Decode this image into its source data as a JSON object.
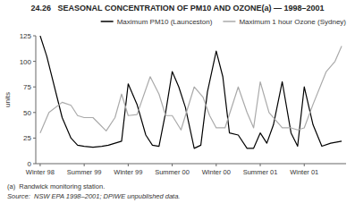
{
  "chart_data": {
    "type": "line",
    "title": "24.26   SEASONAL CONCENTRATION OF PM10 AND OZONE(a) — 1998–2001",
    "ylabel": "units",
    "annotations": [
      "(a)  Randwick monitoring station.",
      "Source:  NSW EPA 1998–2001; DPIWE unpublished data."
    ],
    "xlim": [
      -0.1,
      6.95
    ],
    "xticks": [
      {
        "value": 0,
        "label": "Winter 98"
      },
      {
        "value": 1,
        "label": "Summer 99"
      },
      {
        "value": 2,
        "label": "Winter 99"
      },
      {
        "value": 3,
        "label": "Summer 00"
      },
      {
        "value": 4,
        "label": "Winter 00"
      },
      {
        "value": 5,
        "label": "Summer 01"
      },
      {
        "value": 6,
        "label": "Winter 01"
      }
    ],
    "ylim": [
      0,
      125
    ],
    "yticks": [
      0,
      25,
      50,
      75,
      100,
      125
    ],
    "grid": false,
    "legend": "upper right",
    "series": [
      {
        "name": "Maximum PM10 (Launceston)",
        "color": "#000000",
        "x": [
          0,
          0.15,
          0.5,
          0.7,
          0.85,
          1.0,
          1.2,
          1.4,
          1.55,
          1.7,
          1.85,
          2.0,
          2.2,
          2.4,
          2.55,
          2.7,
          2.85,
          3.0,
          3.15,
          3.3,
          3.5,
          3.65,
          3.8,
          4.0,
          4.15,
          4.3,
          4.5,
          4.7,
          4.85,
          5.0,
          5.15,
          5.3,
          5.5,
          5.7,
          5.85,
          6.0,
          6.2,
          6.4,
          6.6,
          6.85
        ],
        "values": [
          125,
          105,
          45,
          25,
          18,
          17,
          16,
          17,
          18,
          20,
          22,
          78,
          58,
          28,
          18,
          17,
          50,
          90,
          75,
          55,
          15,
          18,
          70,
          110,
          85,
          30,
          28,
          15,
          15,
          30,
          20,
          38,
          80,
          30,
          17,
          75,
          38,
          17,
          20,
          22
        ]
      },
      {
        "name": "Maximum 1 hour Ozone (Sydney)",
        "color": "#aaaaaa",
        "x": [
          0,
          0.2,
          0.5,
          0.7,
          0.85,
          1.0,
          1.2,
          1.5,
          1.7,
          1.85,
          2.0,
          2.2,
          2.5,
          2.7,
          2.85,
          3.0,
          3.2,
          3.5,
          3.7,
          3.85,
          4.0,
          4.2,
          4.5,
          4.7,
          4.85,
          5.0,
          5.2,
          5.5,
          5.7,
          5.85,
          6.0,
          6.2,
          6.5,
          6.7,
          6.85
        ],
        "values": [
          30,
          50,
          60,
          57,
          47,
          45,
          45,
          32,
          45,
          68,
          47,
          48,
          85,
          68,
          47,
          47,
          33,
          75,
          65,
          47,
          35,
          35,
          75,
          50,
          35,
          80,
          50,
          35,
          35,
          33,
          35,
          58,
          90,
          100,
          115
        ]
      }
    ]
  }
}
